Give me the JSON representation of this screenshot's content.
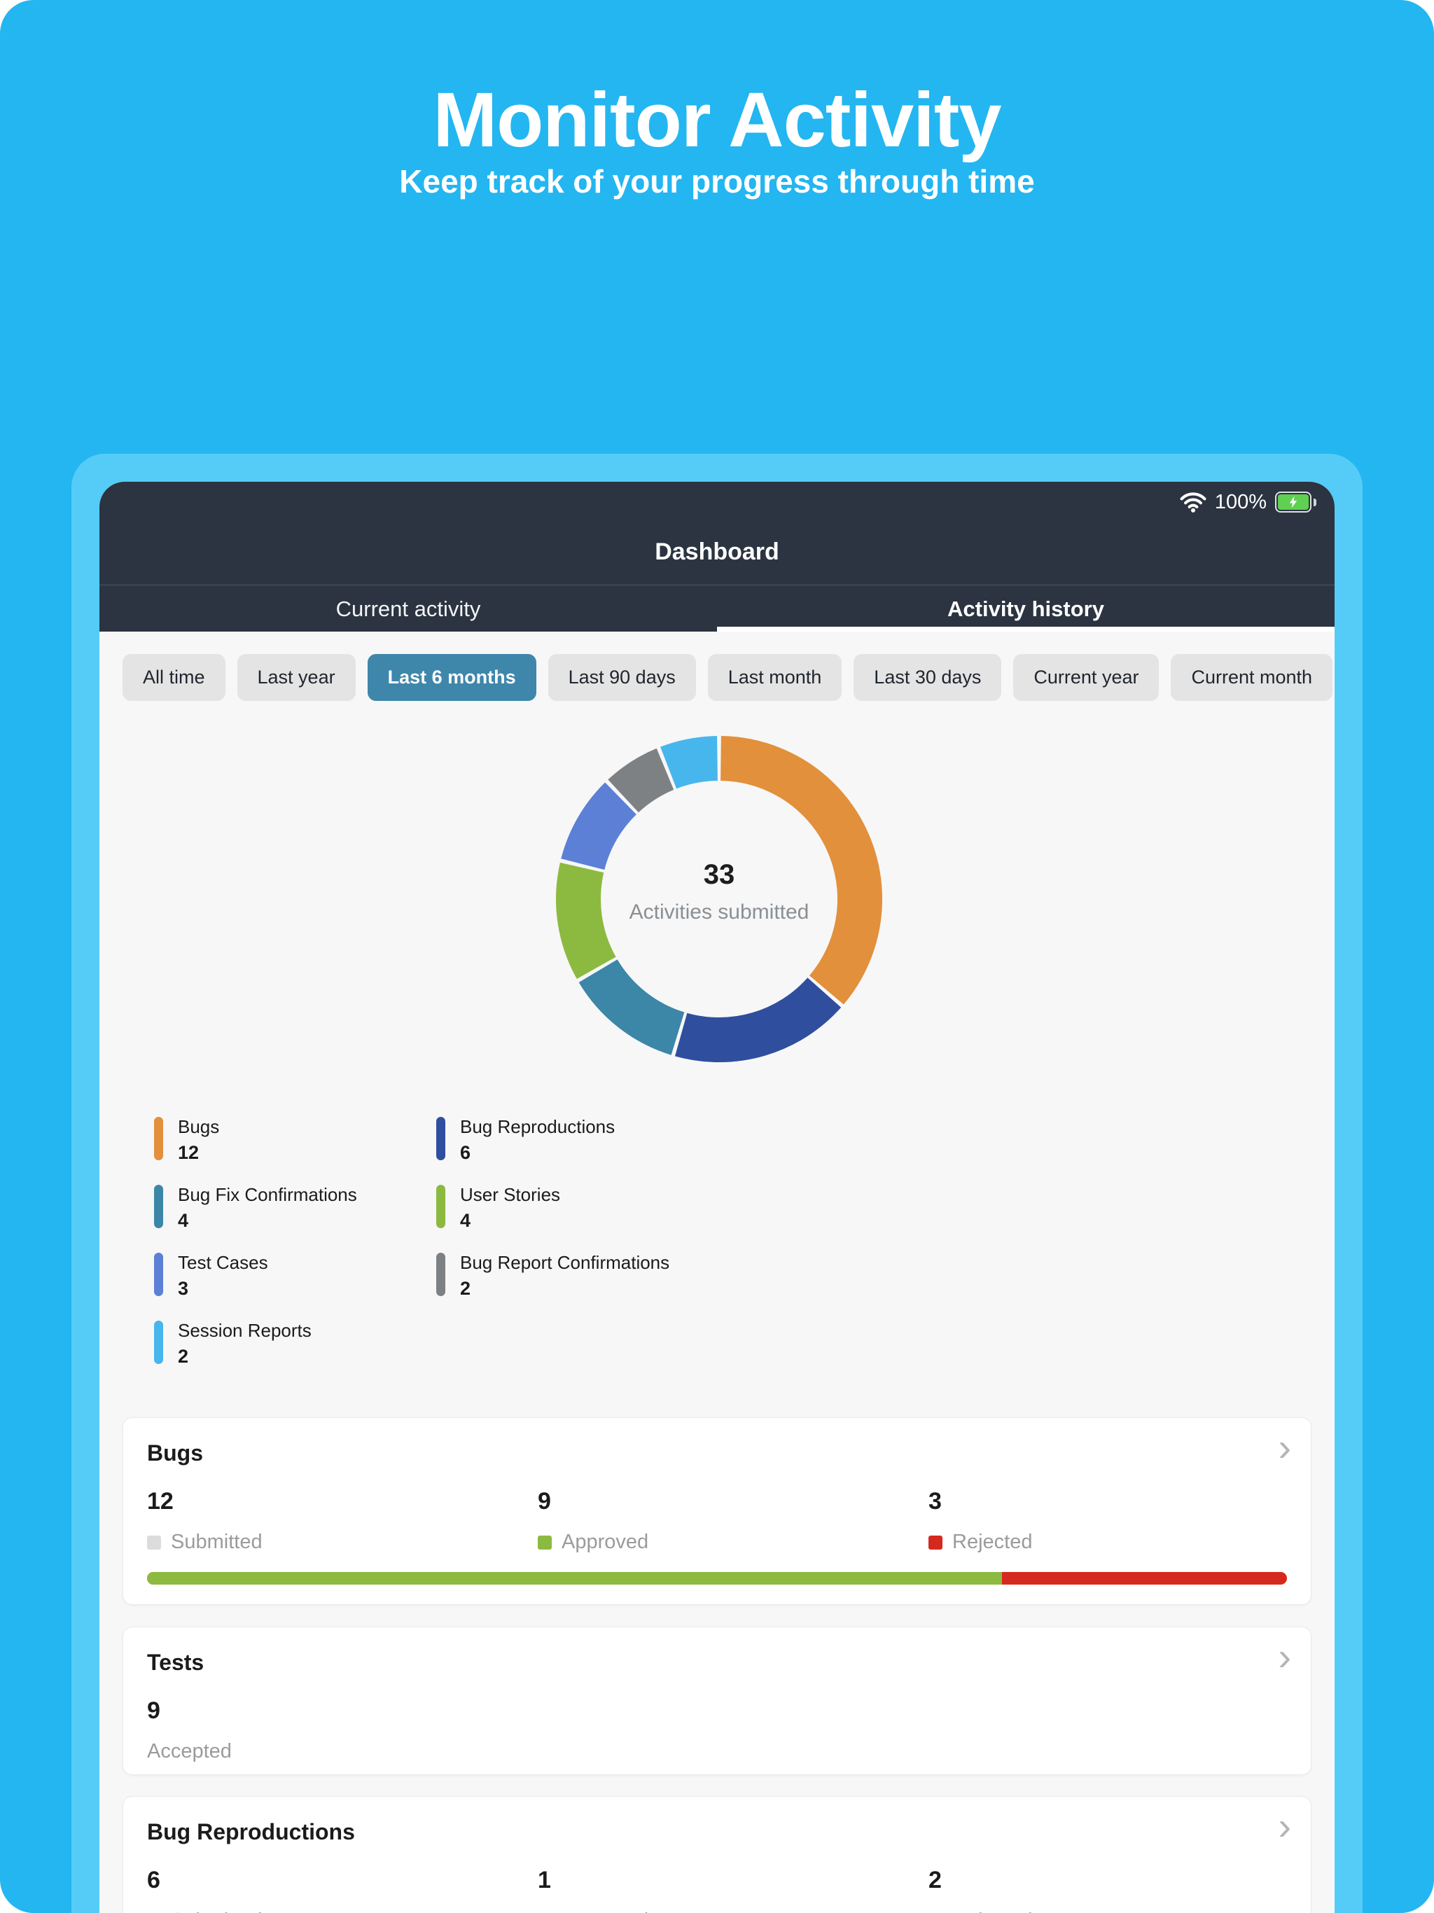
{
  "hero": {
    "title": "Monitor Activity",
    "subtitle": "Keep track of your progress through time"
  },
  "status_bar": {
    "battery_percent": "100%"
  },
  "nav": {
    "title": "Dashboard",
    "tabs": [
      {
        "label": "Current activity",
        "active": false
      },
      {
        "label": "Activity history",
        "active": true
      }
    ]
  },
  "filters": {
    "chips": [
      {
        "label": "All time",
        "selected": false
      },
      {
        "label": "Last year",
        "selected": false
      },
      {
        "label": "Last 6 months",
        "selected": true
      },
      {
        "label": "Last 90 days",
        "selected": false
      },
      {
        "label": "Last month",
        "selected": false
      },
      {
        "label": "Last 30 days",
        "selected": false
      },
      {
        "label": "Current year",
        "selected": false
      },
      {
        "label": "Current month",
        "selected": false
      }
    ],
    "selected_color": "#3E87AB"
  },
  "chart_data": {
    "type": "pie",
    "style": "donut",
    "total": 33,
    "center_value": "33",
    "center_label": "Activities submitted",
    "legend_position": "below, two columns",
    "segments": [
      {
        "label": "Bugs",
        "value": 12,
        "color": "#E2903B"
      },
      {
        "label": "Bug Reproductions",
        "value": 6,
        "color": "#2F4F9E"
      },
      {
        "label": "Bug Fix Confirmations",
        "value": 4,
        "color": "#3C86A8"
      },
      {
        "label": "User Stories",
        "value": 4,
        "color": "#8CBA40"
      },
      {
        "label": "Test Cases",
        "value": 3,
        "color": "#5C80D6"
      },
      {
        "label": "Bug Report Confirmations",
        "value": 2,
        "color": "#7E8184"
      },
      {
        "label": "Session Reports",
        "value": 2,
        "color": "#47B6EC"
      }
    ]
  },
  "cards": [
    {
      "title": "Bugs",
      "stats": [
        {
          "value": "12",
          "label": "Submitted",
          "swatch": "#DCDCDC"
        },
        {
          "value": "9",
          "label": "Approved",
          "swatch": "#8CBA40"
        },
        {
          "value": "3",
          "label": "Rejected",
          "swatch": "#D6291E"
        }
      ],
      "progress": {
        "approved": 9,
        "rejected": 3,
        "approved_color": "#8CBA40",
        "rejected_color": "#D6291E"
      }
    },
    {
      "title": "Tests",
      "stats": [
        {
          "value": "9",
          "label": "Accepted",
          "swatch": null
        }
      ],
      "progress": null
    },
    {
      "title": "Bug Reproductions",
      "stats": [
        {
          "value": "6",
          "label": "Submitted",
          "swatch": "#DCDCDC"
        },
        {
          "value": "1",
          "label": "Approved",
          "swatch": "#8CBA40"
        },
        {
          "value": "2",
          "label": "Rejected",
          "swatch": "#D6291E"
        }
      ],
      "progress": null
    }
  ],
  "icons": {
    "chevron_right": "›"
  },
  "colors": {
    "background_blue": "#23B6F1",
    "panel_blue": "#55CCF7",
    "header_dark": "#2B3440",
    "content_bg": "#F7F7F7",
    "chip_bg": "#E4E4E4",
    "chip_selected": "#3E87AB",
    "approved_green": "#8CBA40",
    "rejected_red": "#D6291E"
  }
}
